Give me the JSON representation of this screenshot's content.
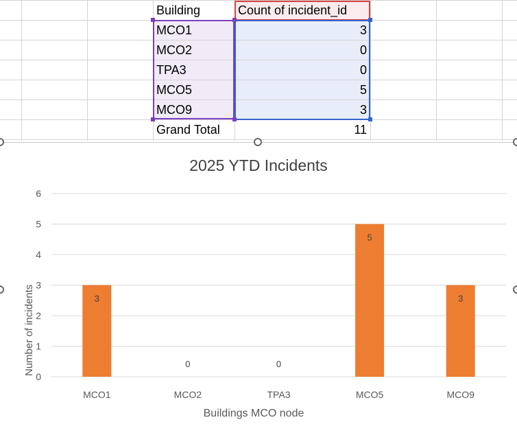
{
  "pivot_table": {
    "headers": [
      "Building",
      "Count of incident_id"
    ],
    "rows": [
      {
        "building": "MCO1",
        "count": "3"
      },
      {
        "building": "MCO2",
        "count": "0"
      },
      {
        "building": "TPA3",
        "count": "0"
      },
      {
        "building": "MCO5",
        "count": "5"
      },
      {
        "building": "MCO9",
        "count": "3"
      }
    ],
    "total_label": "Grand Total",
    "total_value": "11"
  },
  "chart_data": {
    "type": "bar",
    "title": "2025 YTD Incidents",
    "xlabel": "Buildings MCO node",
    "ylabel": "Number of incidents",
    "categories": [
      "MCO1",
      "MCO2",
      "TPA3",
      "MCO5",
      "MCO9"
    ],
    "values": [
      3,
      0,
      0,
      5,
      3
    ],
    "ylim": [
      0,
      6
    ],
    "yticks": [
      0,
      1,
      2,
      3,
      4,
      5,
      6
    ],
    "grid": true,
    "bar_color": "#ed7d31",
    "data_labels": true
  },
  "colors": {
    "gridline": "#d9d9d9",
    "tick_text": "#595959",
    "selection_purple": "#7b3fbf",
    "selection_red": "#d64545",
    "selection_blue": "#3366cc"
  }
}
